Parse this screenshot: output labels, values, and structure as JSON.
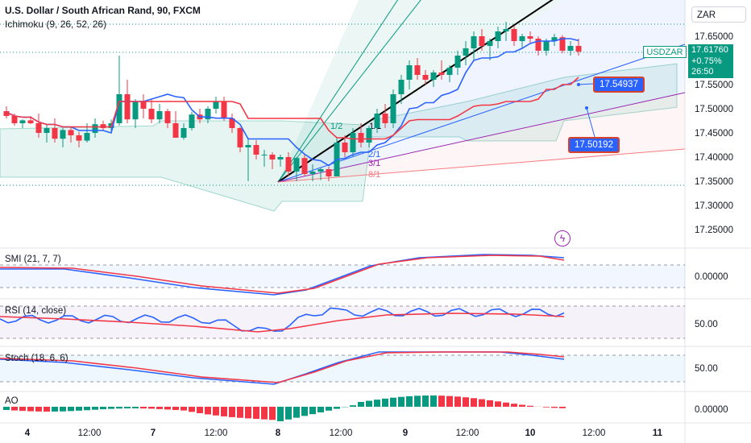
{
  "header": {
    "title": "U.S. Dollar / South African Rand, 90, FXCM",
    "indicator": "Ichimoku (9, 26, 52, 26)"
  },
  "currency_selector": "ZAR",
  "symbol_badge": "USDZAR",
  "price_badge": {
    "price": "17.61760",
    "change": "+0.75%",
    "countdown": "26:50"
  },
  "callouts": {
    "upper": "17.54937",
    "lower": "17.50192"
  },
  "panes": {
    "smi": "SMI (21, 7, 7)",
    "rsi": "RSI (14, close)",
    "stoch": "Stoch (18, 6, 6)",
    "ao": "AO"
  },
  "colors": {
    "up": "#089981",
    "down": "#f23645",
    "tenkan": "#2962ff",
    "kijun": "#f23645",
    "trend": "#000000",
    "fan_1": "#2962ff",
    "fan_2": "#9c27b0",
    "fan_3": "#f77c80"
  },
  "chart_data": {
    "type": "candlestick",
    "price_axis": {
      "ticks": [
        "17.65000",
        "17.60000",
        "17.55000",
        "17.50000",
        "17.45000",
        "17.40000",
        "17.35000",
        "17.30000",
        "17.25000"
      ]
    },
    "time_axis": {
      "ticks": [
        "4",
        "12:00",
        "7",
        "12:00",
        "8",
        "12:00",
        "9",
        "12:00",
        "10",
        "12:00",
        "11"
      ]
    },
    "gann_fan_labels": [
      "1/2",
      "1/1",
      "2/1",
      "3/1",
      "8/1"
    ],
    "candles_ohlc_approx": [
      [
        17.495,
        17.505,
        17.48,
        17.485
      ],
      [
        17.485,
        17.49,
        17.465,
        17.47
      ],
      [
        17.47,
        17.478,
        17.46,
        17.476
      ],
      [
        17.476,
        17.485,
        17.468,
        17.47
      ],
      [
        17.47,
        17.49,
        17.44,
        17.45
      ],
      [
        17.45,
        17.468,
        17.43,
        17.46
      ],
      [
        17.46,
        17.48,
        17.43,
        17.438
      ],
      [
        17.438,
        17.46,
        17.42,
        17.456
      ],
      [
        17.456,
        17.462,
        17.43,
        17.445
      ],
      [
        17.445,
        17.452,
        17.42,
        17.434
      ],
      [
        17.434,
        17.47,
        17.43,
        17.45
      ],
      [
        17.45,
        17.48,
        17.44,
        17.468
      ],
      [
        17.468,
        17.475,
        17.455,
        17.46
      ],
      [
        17.46,
        17.478,
        17.45,
        17.47
      ],
      [
        17.47,
        17.61,
        17.465,
        17.53
      ],
      [
        17.53,
        17.56,
        17.47,
        17.478
      ],
      [
        17.478,
        17.52,
        17.46,
        17.515
      ],
      [
        17.515,
        17.53,
        17.48,
        17.5
      ],
      [
        17.5,
        17.52,
        17.47,
        17.478
      ],
      [
        17.478,
        17.51,
        17.47,
        17.495
      ],
      [
        17.495,
        17.5,
        17.46,
        17.47
      ],
      [
        17.47,
        17.495,
        17.44,
        17.44
      ],
      [
        17.44,
        17.47,
        17.436,
        17.46
      ],
      [
        17.46,
        17.494,
        17.455,
        17.488
      ],
      [
        17.488,
        17.5,
        17.47,
        17.478
      ],
      [
        17.478,
        17.505,
        17.47,
        17.5
      ],
      [
        17.5,
        17.525,
        17.49,
        17.515
      ],
      [
        17.515,
        17.525,
        17.475,
        17.48
      ],
      [
        17.48,
        17.49,
        17.45,
        17.46
      ],
      [
        17.46,
        17.462,
        17.41,
        17.42
      ],
      [
        17.42,
        17.44,
        17.35,
        17.425
      ],
      [
        17.425,
        17.435,
        17.395,
        17.405
      ],
      [
        17.405,
        17.415,
        17.38,
        17.405
      ],
      [
        17.405,
        17.41,
        17.375,
        17.395
      ],
      [
        17.395,
        17.405,
        17.38,
        17.4
      ],
      [
        17.4,
        17.41,
        17.36,
        17.37
      ],
      [
        17.37,
        17.4,
        17.35,
        17.398
      ],
      [
        17.398,
        17.405,
        17.36,
        17.365
      ],
      [
        17.365,
        17.385,
        17.35,
        17.37
      ],
      [
        17.37,
        17.378,
        17.352,
        17.375
      ],
      [
        17.375,
        17.38,
        17.35,
        17.36
      ],
      [
        17.36,
        17.44,
        17.36,
        17.43
      ],
      [
        17.43,
        17.445,
        17.4,
        17.41
      ],
      [
        17.41,
        17.46,
        17.4,
        17.45
      ],
      [
        17.45,
        17.47,
        17.42,
        17.43
      ],
      [
        17.43,
        17.465,
        17.42,
        17.46
      ],
      [
        17.46,
        17.5,
        17.45,
        17.49
      ],
      [
        17.49,
        17.51,
        17.46,
        17.47
      ],
      [
        17.47,
        17.54,
        17.46,
        17.53
      ],
      [
        17.53,
        17.57,
        17.51,
        17.56
      ],
      [
        17.56,
        17.6,
        17.54,
        17.59
      ],
      [
        17.59,
        17.605,
        17.56,
        17.57
      ],
      [
        17.57,
        17.58,
        17.55,
        17.56
      ],
      [
        17.56,
        17.58,
        17.545,
        17.575
      ],
      [
        17.575,
        17.6,
        17.56,
        17.57
      ],
      [
        17.57,
        17.59,
        17.555,
        17.585
      ],
      [
        17.585,
        17.62,
        17.57,
        17.61
      ],
      [
        17.61,
        17.64,
        17.59,
        17.625
      ],
      [
        17.625,
        17.66,
        17.6,
        17.65
      ],
      [
        17.65,
        17.665,
        17.62,
        17.63
      ],
      [
        17.63,
        17.645,
        17.6,
        17.64
      ],
      [
        17.64,
        17.67,
        17.625,
        17.66
      ],
      [
        17.66,
        17.68,
        17.64,
        17.665
      ],
      [
        17.665,
        17.672,
        17.63,
        17.64
      ],
      [
        17.64,
        17.655,
        17.625,
        17.65
      ],
      [
        17.65,
        17.66,
        17.635,
        17.645
      ],
      [
        17.645,
        17.65,
        17.61,
        17.62
      ],
      [
        17.62,
        17.645,
        17.61,
        17.64
      ],
      [
        17.64,
        17.655,
        17.63,
        17.648
      ],
      [
        17.648,
        17.652,
        17.615,
        17.62
      ],
      [
        17.62,
        17.64,
        17.61,
        17.63
      ],
      [
        17.63,
        17.645,
        17.61,
        17.618
      ]
    ],
    "smi_axis_tick": "0.00000",
    "rsi_axis_tick": "50.00",
    "stoch_axis_tick": "50.00",
    "ao_axis_tick": "0.00000"
  }
}
